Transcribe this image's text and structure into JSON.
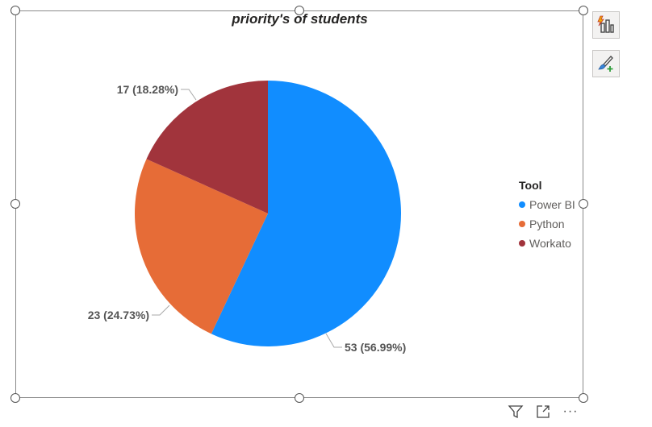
{
  "chart_data": {
    "type": "pie",
    "title": "priority's of students",
    "legend_title": "Tool",
    "legend_position": "right",
    "categories": [
      "Power BI",
      "Python",
      "Workato"
    ],
    "values": [
      53,
      23,
      17
    ],
    "data_labels": [
      "53 (56.99%)",
      "23 (24.73%)",
      "17 (18.28%)"
    ],
    "colors": [
      "#118dff",
      "#e66c37",
      "#a1343c"
    ]
  },
  "toolbar": {
    "icons": [
      "filter-icon",
      "focus-mode-icon",
      "more-options-icon"
    ],
    "more_label": "···"
  },
  "side_panel": {
    "icons": [
      "quick-insights-icon",
      "format-visual-icon"
    ]
  }
}
